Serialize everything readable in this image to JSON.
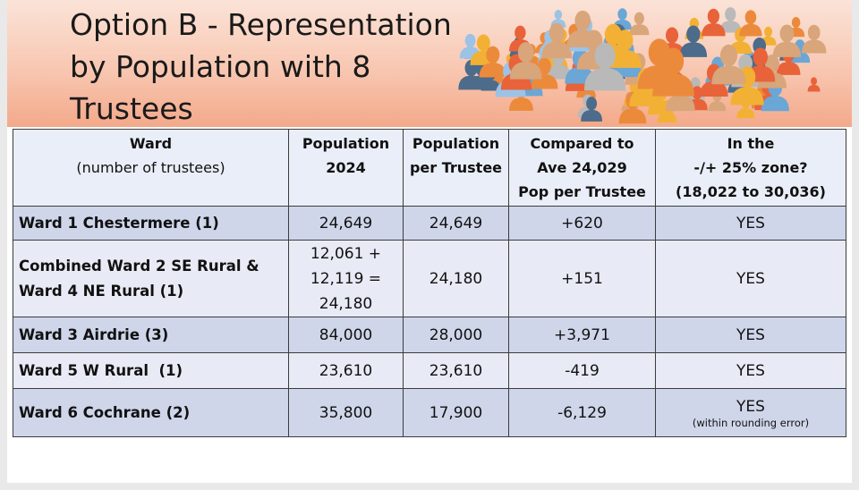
{
  "title_lines": [
    "Option B - Representation",
    "by Population with 8",
    "Trustees"
  ],
  "table": {
    "headers": [
      {
        "line1": "Ward",
        "line2": "(number of trustees)",
        "line3": ""
      },
      {
        "line1": "Population",
        "line2": "2024",
        "line3": ""
      },
      {
        "line1": "Population",
        "line2": "per Trustee",
        "line3": ""
      },
      {
        "line1": "Compared to",
        "line2": "Ave 24,029",
        "line3": "Pop per Trustee"
      },
      {
        "line1": "In the",
        "line2": "-/+ 25% zone?",
        "line3": "(18,022 to 30,036)"
      }
    ],
    "rows": [
      {
        "ward_lines": [
          "Ward 1 Chestermere (1)"
        ],
        "population_lines": [
          "24,649"
        ],
        "per_trustee": "24,649",
        "compared": "+620",
        "zone": "YES",
        "zone_note": ""
      },
      {
        "ward_lines": [
          "Combined Ward 2 SE Rural &",
          "Ward 4 NE Rural (1)"
        ],
        "population_lines": [
          "12,061 +",
          "12,119 =",
          "24,180"
        ],
        "per_trustee": "24,180",
        "compared": "+151",
        "zone": "YES",
        "zone_note": ""
      },
      {
        "ward_lines": [
          "Ward 3 Airdrie (3)"
        ],
        "population_lines": [
          "84,000"
        ],
        "per_trustee": "28,000",
        "compared": "+3,971",
        "zone": "YES",
        "zone_note": ""
      },
      {
        "ward_lines": [
          "Ward 5 W Rural  (1)"
        ],
        "population_lines": [
          "23,610"
        ],
        "per_trustee": "23,610",
        "compared": "-419",
        "zone": "YES",
        "zone_note": ""
      },
      {
        "ward_lines": [
          "Ward 6 Cochrane (2)"
        ],
        "population_lines": [
          "35,800"
        ],
        "per_trustee": "17,900",
        "compared": "-6,129",
        "zone": "YES",
        "zone_note": "(within rounding error)"
      }
    ]
  },
  "colors": {
    "header_bg_top": "#fbe3d8",
    "header_bg_bottom": "#f3a98a",
    "row_shade": "#cfd6ea",
    "row_plain": "#e8ebf5",
    "people_palette": [
      "#e8633a",
      "#f2b134",
      "#6aa6d6",
      "#4d6b8a",
      "#b9b9b9",
      "#d9a57a",
      "#9cc3e6",
      "#ec8a3c"
    ]
  },
  "icons": {
    "decoration": "people-crowd-illustration"
  }
}
